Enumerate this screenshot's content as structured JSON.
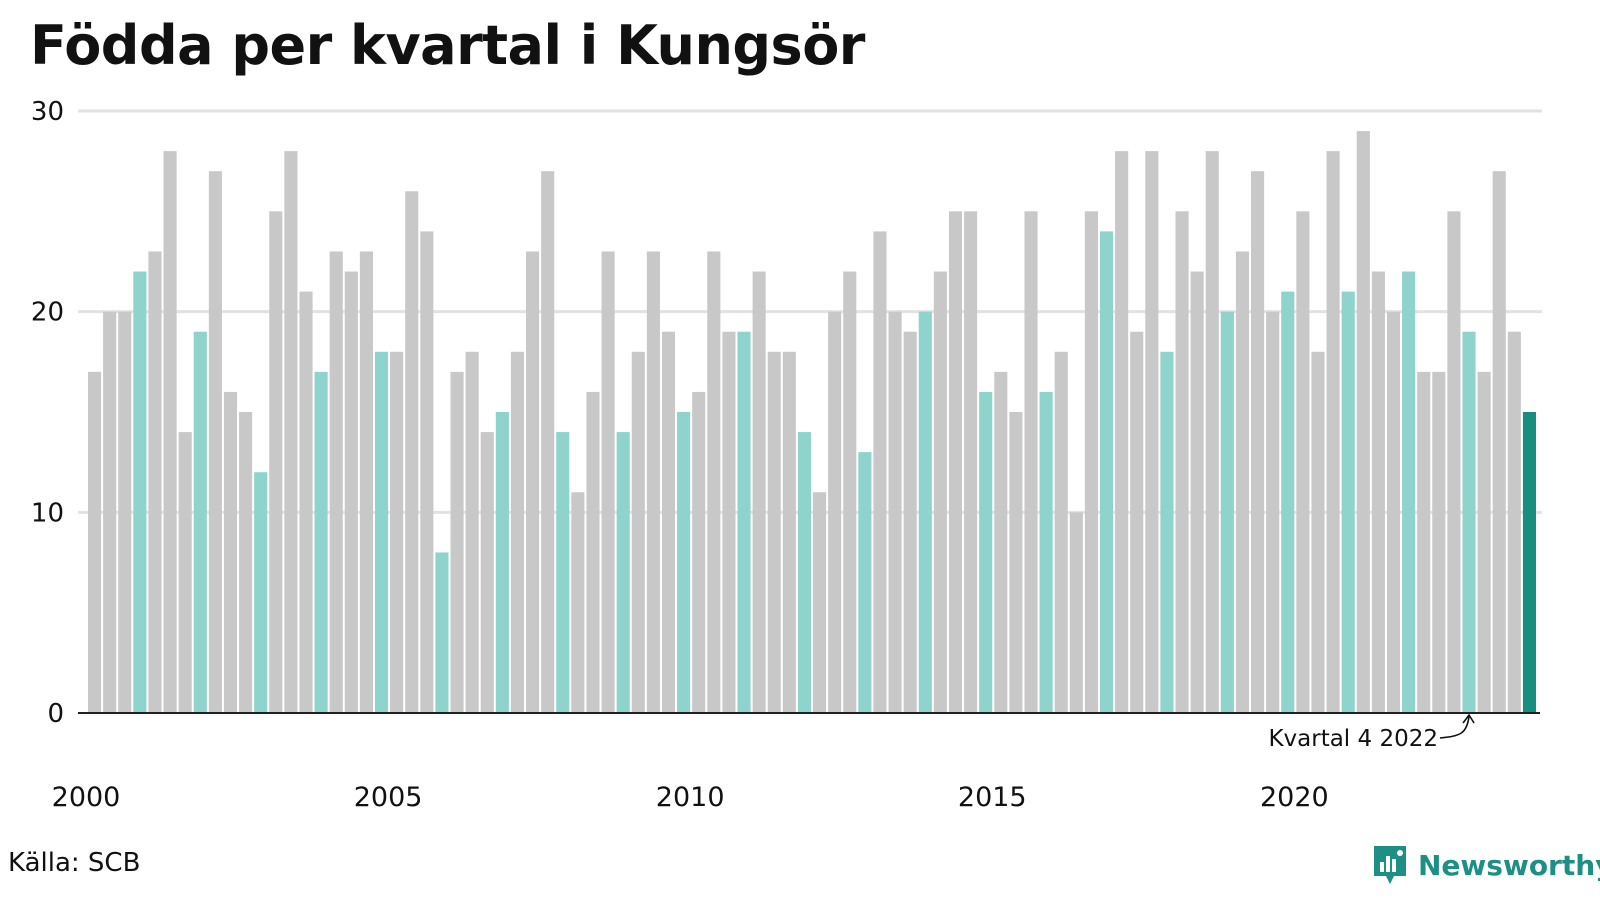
{
  "title": "Födda per kvartal i Kungsör",
  "source": "Källa: SCB",
  "brand": "Newsworthy",
  "colors": {
    "bar_default": "#c8c8c8",
    "bar_q4": "#8ed3cc",
    "bar_latest": "#178e80",
    "grid": "#e2e2e2",
    "brand": "#1d8f84"
  },
  "chart_data": {
    "type": "bar",
    "title": "Födda per kvartal i Kungsör",
    "xlabel": "",
    "ylabel": "",
    "ylim": [
      0,
      30
    ],
    "yticks": [
      0,
      10,
      20,
      30
    ],
    "grid": true,
    "xtick_labels": [
      "2000",
      "2005",
      "2010",
      "2015",
      "2020"
    ],
    "annotation": "Kvartal 4 2022",
    "series": [
      {
        "values": [
          17,
          20,
          20,
          22,
          23,
          28,
          14,
          19,
          27,
          16,
          15,
          12,
          25,
          28,
          21,
          17,
          23,
          22,
          23,
          18,
          18,
          26,
          24,
          8,
          17,
          18,
          14,
          15,
          18,
          23,
          27,
          14,
          11,
          16,
          23,
          14,
          18,
          23,
          19,
          15,
          16,
          23,
          19,
          19,
          22,
          18,
          18,
          14,
          11,
          20,
          22,
          13,
          24,
          20,
          19,
          20,
          22,
          25,
          25,
          16,
          17,
          15,
          25,
          16,
          18,
          10,
          25,
          24,
          28,
          19,
          28,
          18,
          25,
          22,
          28,
          20,
          23,
          27,
          20,
          21,
          25,
          18,
          28,
          21,
          29,
          22,
          20,
          22,
          17,
          17,
          25,
          19,
          17,
          27,
          19,
          15
        ]
      }
    ]
  }
}
